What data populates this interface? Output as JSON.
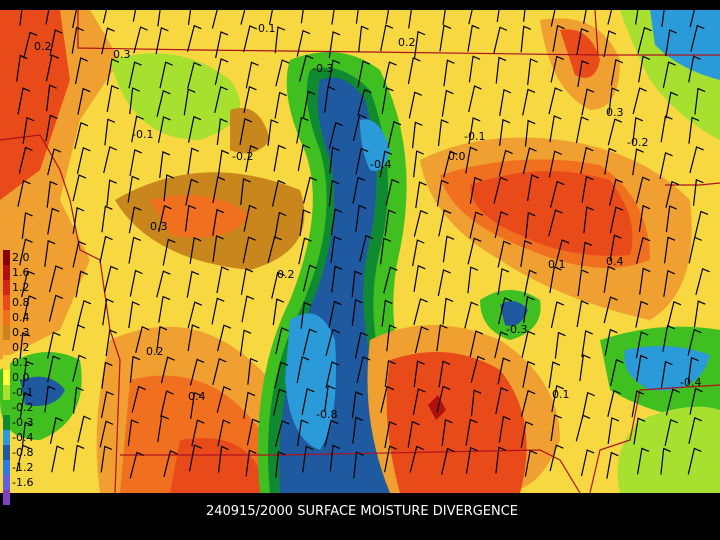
{
  "caption": "240915/2000 SURFACE MOISTURE DIVERGENCE",
  "legend": [
    {
      "label": "2.0",
      "color": "#8b0000"
    },
    {
      "label": "1.6",
      "color": "#b01010"
    },
    {
      "label": "1.2",
      "color": "#d02818"
    },
    {
      "label": "0.8",
      "color": "#e84a1a"
    },
    {
      "label": "0.4",
      "color": "#f07020"
    },
    {
      "label": "0.3",
      "color": "#c8861c"
    },
    {
      "label": "0.2",
      "color": "#f0a030"
    },
    {
      "label": "0.1",
      "color": "#f8d840"
    },
    {
      "label": "0.0",
      "color": "#ffff40"
    },
    {
      "label": "-0.1",
      "color": "#a8e030"
    },
    {
      "label": "-0.2",
      "color": "#40c020"
    },
    {
      "label": "-0.3",
      "color": "#108a30"
    },
    {
      "label": "-0.4",
      "color": "#2a9ad8"
    },
    {
      "label": "-0.8",
      "color": "#1f5aa0"
    },
    {
      "label": "-1.2",
      "color": "#2a7ae8"
    },
    {
      "label": "-1.6",
      "color": "#6060e0"
    },
    {
      "label": "-2.0",
      "color": "#8040c0"
    }
  ],
  "contour_labels": [
    "0.2",
    "-0.3",
    "0.1",
    "0.3",
    "-0.1",
    "-0.2",
    "0.2",
    "-0.4",
    "0.3",
    "0.1",
    "-0.8",
    "-0.3",
    "0.4",
    "0.2",
    "-0.1",
    "0.4",
    "0.3",
    "-0.2",
    "0.2",
    "-0.4",
    "0.1",
    "0.0"
  ]
}
